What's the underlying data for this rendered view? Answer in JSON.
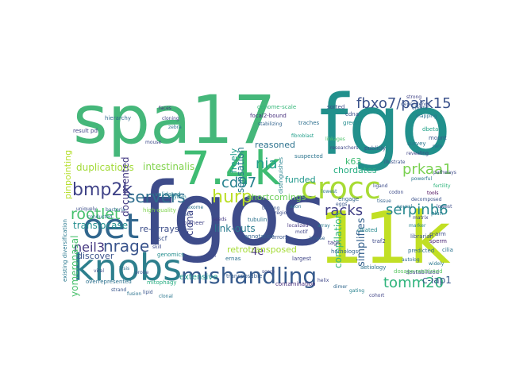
{
  "words": [
    {
      "text": "spa17",
      "color": "#45b77a"
    },
    {
      "text": "fgo",
      "color": "#21908c"
    },
    {
      "text": "fgos",
      "color": "#3e4c8a"
    },
    {
      "text": "11k",
      "color": "#c1df24"
    },
    {
      "text": "7.4k",
      "color": "#3fbc73"
    },
    {
      "text": "knobs",
      "color": "#2d7f8d"
    },
    {
      "text": "oet",
      "color": "#31678e"
    },
    {
      "text": "crocc",
      "color": "#a8db34"
    },
    {
      "text": "mishandling",
      "color": "#375b8d"
    },
    {
      "text": "fbxo7/park15",
      "color": "#3b528b"
    },
    {
      "text": "bmp2k",
      "color": "#404388"
    },
    {
      "text": "rootlet",
      "color": "#48c16e"
    },
    {
      "text": "servers",
      "color": "#2e6e8e"
    },
    {
      "text": "nrage",
      "color": "#3a548c"
    },
    {
      "text": "neil3",
      "color": "#453781"
    },
    {
      "text": "hurp",
      "color": "#bade28"
    },
    {
      "text": "cd97",
      "color": "#26818e"
    },
    {
      "text": "nia",
      "color": "#1f9e89"
    },
    {
      "text": "prkaa1",
      "color": "#7ad151"
    },
    {
      "text": "racks",
      "color": "#424086"
    },
    {
      "text": "serpinb6",
      "color": "#24868e"
    },
    {
      "text": "tomm20",
      "color": "#2fb47c"
    },
    {
      "text": "c-iap1",
      "color": "#38588c"
    },
    {
      "text": "4e",
      "color": "#46307e"
    },
    {
      "text": "duplications",
      "color": "#a2da37"
    },
    {
      "text": "intestinalis",
      "color": "#81d34d"
    },
    {
      "text": "documented",
      "color": "#443a83"
    },
    {
      "text": "translocase",
      "color": "#228d8d"
    },
    {
      "text": "re-arrays",
      "color": "#3d4e8a"
    },
    {
      "text": "sensation",
      "color": "#2a788e"
    },
    {
      "text": "link-outs",
      "color": "#297b8e"
    },
    {
      "text": "shortcomings",
      "color": "#6ccd5a"
    },
    {
      "text": "chordates",
      "color": "#26ad81"
    },
    {
      "text": "funded",
      "color": "#1f978b"
    },
    {
      "text": "reasoned",
      "color": "#2c728e"
    },
    {
      "text": "compilation",
      "color": "#35b779"
    },
    {
      "text": "simplifies",
      "color": "#34608d"
    },
    {
      "text": "retrotransposed",
      "color": "#a5db36"
    },
    {
      "text": "extensive",
      "color": "#1f968b"
    },
    {
      "text": "discover",
      "color": "#3b528b"
    },
    {
      "text": "yomeronasal",
      "color": "#4ac16d"
    },
    {
      "text": "ciona",
      "color": "#3f4788"
    },
    {
      "text": "freely",
      "color": "#1f9a8a"
    },
    {
      "text": "k63",
      "color": "#3fbc73"
    },
    {
      "text": "pinpointing",
      "color": "#b5de2b"
    },
    {
      "text": "hierarchy",
      "color": "#31688e"
    },
    {
      "text": "validated",
      "color": "#26828e"
    },
    {
      "text": "pioneer",
      "color": "#414487"
    },
    {
      "text": "tubulin",
      "color": "#2c738e"
    },
    {
      "text": "annotation",
      "color": "#34618d"
    },
    {
      "text": "errors",
      "color": "#39568c"
    },
    {
      "text": "transposable",
      "color": "#365c8d"
    },
    {
      "text": "contamination",
      "color": "#472d7b"
    },
    {
      "text": "largest",
      "color": "#404688"
    },
    {
      "text": "rich",
      "color": "#3e4a89"
    },
    {
      "text": "aetiology",
      "color": "#2d718e"
    },
    {
      "text": "ciliated",
      "color": "#23888e"
    },
    {
      "text": "predicted",
      "color": "#2e6d8e"
    },
    {
      "text": "plan",
      "color": "#287c8e"
    },
    {
      "text": "sperm",
      "color": "#482374"
    },
    {
      "text": "publicly",
      "color": "#3a538b"
    },
    {
      "text": "survey",
      "color": "#2a768e"
    },
    {
      "text": "engage",
      "color": "#33638d"
    },
    {
      "text": "suspected",
      "color": "#2b748e"
    },
    {
      "text": "traches",
      "color": "#2e6f8e"
    },
    {
      "text": "green",
      "color": "#228b8d"
    },
    {
      "text": "sorted",
      "color": "#3d4d8a"
    },
    {
      "text": "cdna",
      "color": "#3b518b"
    },
    {
      "text": "focal2-bound",
      "color": "#472f7d"
    },
    {
      "text": "genome-scale",
      "color": "#35b779"
    },
    {
      "text": "high-quality",
      "color": "#7fd34e"
    },
    {
      "text": "conducted",
      "color": "#2b748e"
    },
    {
      "text": "uniquely",
      "color": "#3c4f8a"
    },
    {
      "text": "result pd",
      "color": "#414487"
    },
    {
      "text": "distinguishes",
      "color": "#26828e"
    },
    {
      "text": "traf2",
      "color": "#3e4989"
    },
    {
      "text": "tags",
      "color": "#443b84"
    },
    {
      "text": "mount",
      "color": "#38598c"
    },
    {
      "text": "dbeta",
      "color": "#1fa187"
    },
    {
      "text": "cilia",
      "color": "#2c728e"
    },
    {
      "text": "librarian",
      "color": "#3b528b"
    },
    {
      "text": "p-arm",
      "color": "#3d4e8a"
    },
    {
      "text": "autolog",
      "color": "#2f6c8e"
    },
    {
      "text": "homologs",
      "color": "#32658e"
    },
    {
      "text": "destabilized",
      "color": "#404588"
    },
    {
      "text": "overrepresented",
      "color": "#2c718e"
    },
    {
      "text": "existing diversification",
      "color": "#2a788e"
    },
    {
      "text": "dosage-restricted",
      "color": "#5cc863"
    },
    {
      "text": "mitophagy",
      "color": "#27ad81"
    },
    {
      "text": "genomics",
      "color": "#228c8d"
    },
    {
      "text": "scf",
      "color": "#3b528b"
    },
    {
      "text": "skill",
      "color": "#3e4c8a"
    },
    {
      "text": "bacteria",
      "color": "#31688e"
    },
    {
      "text": "ernas",
      "color": "#2c728e"
    },
    {
      "text": "fertility",
      "color": "#2fb47c"
    },
    {
      "text": "strong",
      "color": "#414487"
    },
    {
      "text": "faces",
      "color": "#46337f"
    },
    {
      "text": "stabilizing",
      "color": "#33638d"
    },
    {
      "text": "illustrate",
      "color": "#3b528b"
    },
    {
      "text": "powerful",
      "color": "#2a778e"
    },
    {
      "text": "eggs",
      "color": "#39558c"
    },
    {
      "text": "lowest",
      "color": "#2c738e"
    },
    {
      "text": "regions",
      "color": "#3d4e8a"
    },
    {
      "text": "localized",
      "color": "#453882"
    },
    {
      "text": "marker",
      "color": "#26828e"
    },
    {
      "text": "linkages",
      "color": "#4ec36b"
    },
    {
      "text": "researchers",
      "color": "#3f4889"
    },
    {
      "text": "fibroblast",
      "color": "#1f9e89"
    },
    {
      "text": "efforts",
      "color": "#33628d"
    },
    {
      "text": "dependency",
      "color": "#3a548c"
    },
    {
      "text": "mapping",
      "color": "#2d708e"
    },
    {
      "text": "pathways",
      "color": "#3e4a89"
    },
    {
      "text": "decomposed",
      "color": "#3b528b"
    },
    {
      "text": "lowest",
      "color": "#3c4f8a"
    },
    {
      "text": "widely",
      "color": "#2a788e"
    },
    {
      "text": "tools",
      "color": "#440154"
    },
    {
      "text": "revealing",
      "color": "#414487"
    },
    {
      "text": "rare",
      "color": "#31688e"
    },
    {
      "text": "cloning",
      "color": "#3f4788"
    },
    {
      "text": "zebra",
      "color": "#2c728e"
    },
    {
      "text": "mouse",
      "color": "#3e4a89"
    },
    {
      "text": "rhythm",
      "color": "#26818e"
    },
    {
      "text": "loci",
      "color": "#3b528b"
    },
    {
      "text": "exome",
      "color": "#2d708e"
    },
    {
      "text": "seeds",
      "color": "#443b84"
    },
    {
      "text": "binding",
      "color": "#3a548c"
    },
    {
      "text": "axon",
      "color": "#2c728e"
    },
    {
      "text": "motif",
      "color": "#404588"
    },
    {
      "text": "kinase",
      "color": "#33628d"
    },
    {
      "text": "array",
      "color": "#2a788e"
    },
    {
      "text": "score",
      "color": "#3e4a89"
    },
    {
      "text": "helix",
      "color": "#3f4788"
    },
    {
      "text": "dimer",
      "color": "#31688e"
    },
    {
      "text": "gating",
      "color": "#26828e"
    },
    {
      "text": "cohort",
      "color": "#414487"
    },
    {
      "text": "lysis",
      "color": "#2d708e"
    },
    {
      "text": "probe",
      "color": "#3b528b"
    },
    {
      "text": "viral",
      "color": "#3c4f8a"
    },
    {
      "text": "strand",
      "color": "#39568c"
    },
    {
      "text": "fusion",
      "color": "#2c738e"
    },
    {
      "text": "lipid",
      "color": "#3a548c"
    },
    {
      "text": "clonal",
      "color": "#2a768e"
    },
    {
      "text": "ligand",
      "color": "#3d4d8a"
    },
    {
      "text": "codon",
      "color": "#3e4c8a"
    },
    {
      "text": "tissue",
      "color": "#33628d"
    },
    {
      "text": "neural",
      "color": "#2b748e"
    },
    {
      "text": "matrix",
      "color": "#404688"
    }
  ]
}
